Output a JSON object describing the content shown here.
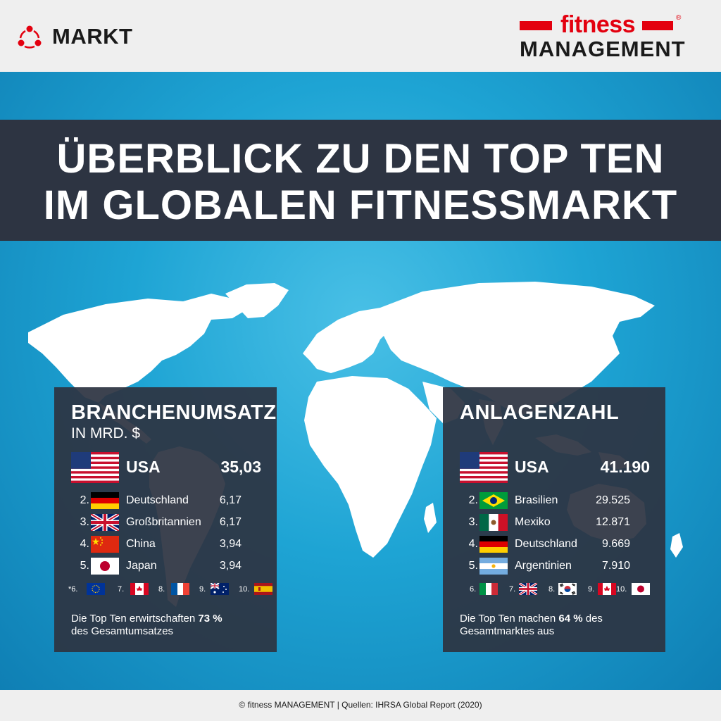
{
  "header": {
    "section_label": "MARKT",
    "brand_line1": "fitness",
    "brand_line2": "MANAGEMENT",
    "brand_reg": "®"
  },
  "banner": {
    "line1": "ÜBERBLICK ZU DEN TOP TEN",
    "line2": "IM GLOBALEN FITNESSMARKT"
  },
  "left_panel": {
    "title": "BRANCHENUMSATZ",
    "subtitle": "IN MRD. $",
    "top": {
      "country": "USA",
      "value": "35,03",
      "flag": "us-flag"
    },
    "rows": [
      {
        "rank": "2.",
        "country": "Deutschland",
        "value": "6,17",
        "flag": "germany-flag"
      },
      {
        "rank": "3.",
        "country": "Großbritannien",
        "value": "6,17",
        "flag": "uk-flag"
      },
      {
        "rank": "4.",
        "country": "China",
        "value": "3,94",
        "flag": "china-flag"
      },
      {
        "rank": "5.",
        "country": "Japan",
        "value": "3,94",
        "flag": "japan-flag"
      }
    ],
    "small": [
      {
        "rank": "*6.",
        "flag": "eu-flag"
      },
      {
        "rank": "7.",
        "flag": "canada-flag"
      },
      {
        "rank": "8.",
        "flag": "france-flag"
      },
      {
        "rank": "9.",
        "flag": "australia-flag"
      },
      {
        "rank": "10.",
        "flag": "spain-flag"
      }
    ],
    "foot_pre": "Die Top Ten erwirtschaften ",
    "foot_bold": "73 %",
    "foot_post": "des Gesamtumsatzes"
  },
  "right_panel": {
    "title": "ANLAGENZAHL",
    "top": {
      "country": "USA",
      "value": "41.190",
      "flag": "us-flag"
    },
    "rows": [
      {
        "rank": "2.",
        "country": "Brasilien",
        "value": "29.525",
        "flag": "brazil-flag"
      },
      {
        "rank": "3.",
        "country": "Mexiko",
        "value": "12.871",
        "flag": "mexico-flag"
      },
      {
        "rank": "4.",
        "country": "Deutschland",
        "value": "9.669",
        "flag": "germany-flag"
      },
      {
        "rank": "5.",
        "country": "Argentinien",
        "value": "7.910",
        "flag": "argentina-flag"
      }
    ],
    "small": [
      {
        "rank": "6.",
        "flag": "italy-flag"
      },
      {
        "rank": "7.",
        "flag": "uk-flag"
      },
      {
        "rank": "8.",
        "flag": "korea-flag"
      },
      {
        "rank": "9.",
        "flag": "canada-flag"
      },
      {
        "rank": "10.",
        "flag": "japan-flag"
      }
    ],
    "foot_pre": "Die Top Ten machen ",
    "foot_bold": "64 %",
    "foot_mid": " des",
    "foot_post": "Gesamtmarktes aus"
  },
  "footer": {
    "text": "© fitness MANAGEMENT  |  Quellen: IHRSA Global Report (2020)"
  }
}
